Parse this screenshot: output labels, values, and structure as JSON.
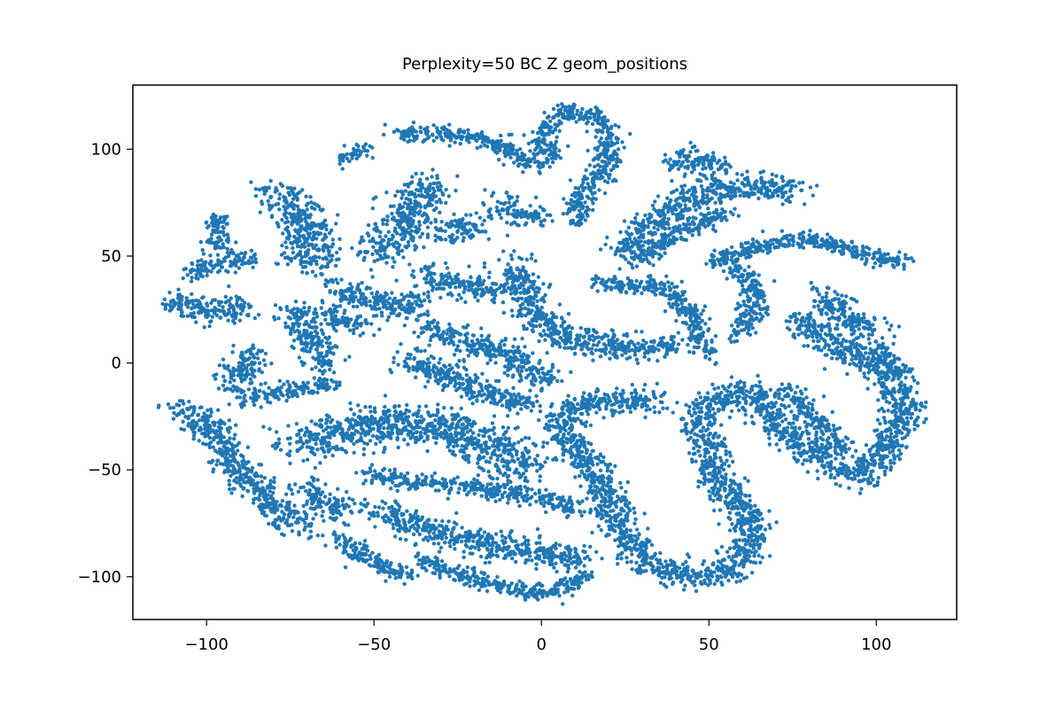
{
  "chart_data": {
    "type": "scatter",
    "title": "Perplexity=50 BC Z geom_positions",
    "xlabel": "",
    "ylabel": "",
    "xlim": [
      -122,
      124
    ],
    "ylim": [
      -120,
      130
    ],
    "xticks": [
      -100,
      -50,
      0,
      50,
      100
    ],
    "yticks": [
      -100,
      -50,
      0,
      50,
      100
    ],
    "x_tick_labels": [
      "−100",
      "−50",
      "0",
      "50",
      "100"
    ],
    "y_tick_labels": [
      "−100",
      "−50",
      "0",
      "50",
      "100"
    ],
    "grid": false,
    "legend": "none",
    "marker_color": "#1f77b4",
    "clusters": [
      {
        "path": [
          [
            -111,
            30
          ],
          [
            -104,
            26
          ],
          [
            -97,
            24
          ],
          [
            -88,
            25
          ]
        ],
        "spread": 3
      },
      {
        "path": [
          [
            -104,
            40
          ],
          [
            -98,
            46
          ],
          [
            -92,
            50
          ],
          [
            -86,
            48
          ]
        ],
        "spread": 2
      },
      {
        "path": [
          [
            -97,
            68
          ],
          [
            -97,
            60
          ],
          [
            -96,
            54
          ]
        ],
        "spread": 2
      },
      {
        "path": [
          [
            -80,
            80
          ],
          [
            -74,
            72
          ],
          [
            -70,
            62
          ],
          [
            -68,
            50
          ],
          [
            -70,
            45
          ]
        ],
        "spread": 4
      },
      {
        "path": [
          [
            -62,
            35
          ],
          [
            -54,
            30
          ],
          [
            -46,
            27
          ],
          [
            -40,
            25
          ],
          [
            -36,
            30
          ]
        ],
        "spread": 3
      },
      {
        "path": [
          [
            -66,
            25
          ],
          [
            -60,
            20
          ],
          [
            -53,
            17
          ]
        ],
        "spread": 2
      },
      {
        "path": [
          [
            -34,
            84
          ],
          [
            -36,
            76
          ],
          [
            -40,
            66
          ],
          [
            -44,
            58
          ],
          [
            -50,
            50
          ]
        ],
        "spread": 4
      },
      {
        "path": [
          [
            -58,
            95
          ],
          [
            -54,
            102
          ]
        ],
        "spread": 2
      },
      {
        "path": [
          [
            -43,
            107
          ],
          [
            -30,
            108
          ],
          [
            -15,
            104
          ],
          [
            -5,
            95
          ],
          [
            2,
            92
          ]
        ],
        "spread": 2
      },
      {
        "path": [
          [
            2,
            96
          ],
          [
            0,
            104
          ],
          [
            2,
            112
          ],
          [
            8,
            118
          ],
          [
            16,
            115
          ],
          [
            20,
            108
          ],
          [
            20,
            96
          ],
          [
            18,
            88
          ],
          [
            14,
            82
          ],
          [
            10,
            74
          ],
          [
            12,
            66
          ]
        ],
        "spread": 2
      },
      {
        "path": [
          [
            -35,
            42
          ],
          [
            -28,
            38
          ],
          [
            -20,
            36
          ],
          [
            -12,
            34
          ]
        ],
        "spread": 3
      },
      {
        "path": [
          [
            -30,
            60
          ],
          [
            -24,
            64
          ],
          [
            -18,
            66
          ]
        ],
        "spread": 3
      },
      {
        "path": [
          [
            -14,
            72
          ],
          [
            -8,
            72
          ],
          [
            -4,
            70
          ],
          [
            -2,
            66
          ]
        ],
        "spread": 3
      },
      {
        "path": [
          [
            -8,
            46
          ],
          [
            -6,
            36
          ],
          [
            -4,
            26
          ],
          [
            0,
            18
          ],
          [
            6,
            12
          ],
          [
            14,
            10
          ],
          [
            22,
            8
          ],
          [
            30,
            6
          ]
        ],
        "spread": 3
      },
      {
        "path": [
          [
            -34,
            15
          ],
          [
            -24,
            12
          ],
          [
            -14,
            6
          ],
          [
            -4,
            -2
          ],
          [
            3,
            -8
          ]
        ],
        "spread": 3
      },
      {
        "path": [
          [
            -40,
            2
          ],
          [
            -30,
            -5
          ],
          [
            -20,
            -12
          ],
          [
            -10,
            -17
          ],
          [
            -3,
            -20
          ]
        ],
        "spread": 3
      },
      {
        "path": [
          [
            -86,
            5
          ],
          [
            -90,
            -2
          ],
          [
            -92,
            -10
          ]
        ],
        "spread": 3
      },
      {
        "path": [
          [
            -74,
            25
          ],
          [
            -70,
            15
          ],
          [
            -66,
            5
          ],
          [
            -64,
            -3
          ]
        ],
        "spread": 3
      },
      {
        "path": [
          [
            -90,
            -17
          ],
          [
            -80,
            -14
          ],
          [
            -70,
            -12
          ],
          [
            -62,
            -10
          ]
        ],
        "spread": 2
      },
      {
        "path": [
          [
            -108,
            -20
          ],
          [
            -100,
            -28
          ],
          [
            -95,
            -38
          ],
          [
            -92,
            -48
          ],
          [
            -86,
            -58
          ],
          [
            -78,
            -68
          ],
          [
            -72,
            -78
          ]
        ],
        "spread": 3
      },
      {
        "path": [
          [
            -70,
            -58
          ],
          [
            -64,
            -66
          ],
          [
            -58,
            -70
          ]
        ],
        "spread": 3
      },
      {
        "path": [
          [
            -72,
            -38
          ],
          [
            -60,
            -33
          ],
          [
            -45,
            -28
          ],
          [
            -30,
            -30
          ],
          [
            -18,
            -38
          ],
          [
            -10,
            -45
          ],
          [
            -4,
            -50
          ]
        ],
        "spread": 5
      },
      {
        "path": [
          [
            -52,
            -52
          ],
          [
            -40,
            -55
          ],
          [
            -26,
            -57
          ],
          [
            -12,
            -60
          ],
          [
            2,
            -64
          ],
          [
            10,
            -70
          ]
        ],
        "spread": 2
      },
      {
        "path": [
          [
            -48,
            -68
          ],
          [
            -40,
            -75
          ],
          [
            -30,
            -80
          ],
          [
            -18,
            -84
          ],
          [
            -5,
            -88
          ],
          [
            5,
            -90
          ],
          [
            14,
            -92
          ]
        ],
        "spread": 3
      },
      {
        "path": [
          [
            -60,
            -82
          ],
          [
            -54,
            -90
          ],
          [
            -46,
            -96
          ],
          [
            -40,
            -100
          ]
        ],
        "spread": 2
      },
      {
        "path": [
          [
            -36,
            -92
          ],
          [
            -26,
            -98
          ],
          [
            -14,
            -104
          ],
          [
            -2,
            -108
          ],
          [
            8,
            -104
          ],
          [
            14,
            -100
          ]
        ],
        "spread": 2
      },
      {
        "path": [
          [
            34,
            -18
          ],
          [
            20,
            -18
          ],
          [
            12,
            -20
          ],
          [
            6,
            -26
          ],
          [
            8,
            -36
          ],
          [
            14,
            -46
          ],
          [
            18,
            -56
          ],
          [
            22,
            -68
          ],
          [
            24,
            -80
          ],
          [
            30,
            -92
          ],
          [
            40,
            -98
          ],
          [
            50,
            -100
          ],
          [
            58,
            -96
          ],
          [
            62,
            -86
          ],
          [
            62,
            -74
          ],
          [
            58,
            -64
          ],
          [
            52,
            -54
          ],
          [
            50,
            -44
          ],
          [
            50,
            -34
          ]
        ],
        "spread": 3
      },
      {
        "path": [
          [
            44,
            -30
          ],
          [
            50,
            -20
          ],
          [
            60,
            -12
          ],
          [
            66,
            -18
          ],
          [
            70,
            -28
          ],
          [
            76,
            -36
          ],
          [
            84,
            -44
          ],
          [
            90,
            -50
          ],
          [
            98,
            -54
          ]
        ],
        "spread": 3
      },
      {
        "path": [
          [
            72,
            -12
          ],
          [
            78,
            -20
          ],
          [
            84,
            -30
          ],
          [
            90,
            -40
          ]
        ],
        "spread": 2
      },
      {
        "path": [
          [
            25,
            50
          ],
          [
            32,
            64
          ],
          [
            40,
            74
          ],
          [
            50,
            80
          ],
          [
            60,
            82
          ],
          [
            70,
            82
          ],
          [
            76,
            80
          ]
        ],
        "spread": 3
      },
      {
        "path": [
          [
            30,
            48
          ],
          [
            38,
            58
          ],
          [
            48,
            66
          ],
          [
            56,
            70
          ]
        ],
        "spread": 2
      },
      {
        "path": [
          [
            40,
            92
          ],
          [
            46,
            96
          ],
          [
            54,
            90
          ]
        ],
        "spread": 3
      },
      {
        "path": [
          [
            16,
            38
          ],
          [
            24,
            36
          ],
          [
            34,
            36
          ],
          [
            40,
            32
          ],
          [
            44,
            24
          ],
          [
            46,
            16
          ],
          [
            48,
            8
          ],
          [
            50,
            3
          ]
        ],
        "spread": 2
      },
      {
        "path": [
          [
            56,
            45
          ],
          [
            62,
            40
          ],
          [
            64,
            30
          ],
          [
            62,
            20
          ],
          [
            58,
            12
          ]
        ],
        "spread": 2
      },
      {
        "path": [
          [
            50,
            47
          ],
          [
            60,
            52
          ],
          [
            70,
            56
          ],
          [
            80,
            58
          ],
          [
            90,
            54
          ],
          [
            100,
            50
          ],
          [
            108,
            47
          ]
        ],
        "spread": 2
      },
      {
        "path": [
          [
            84,
            32
          ],
          [
            88,
            25
          ],
          [
            92,
            20
          ],
          [
            100,
            15
          ]
        ],
        "spread": 3
      },
      {
        "path": [
          [
            76,
            20
          ],
          [
            84,
            12
          ],
          [
            92,
            4
          ],
          [
            100,
            -2
          ],
          [
            106,
            -10
          ],
          [
            108,
            -22
          ],
          [
            106,
            -32
          ],
          [
            102,
            -42
          ],
          [
            98,
            -50
          ]
        ],
        "spread": 3
      },
      {
        "path": [
          [
            40,
            10
          ],
          [
            36,
            6
          ],
          [
            30,
            8
          ]
        ],
        "spread": 2
      },
      {
        "path": [
          [
            100,
            8
          ],
          [
            104,
            0
          ],
          [
            108,
            -4
          ]
        ],
        "spread": 2
      }
    ]
  }
}
